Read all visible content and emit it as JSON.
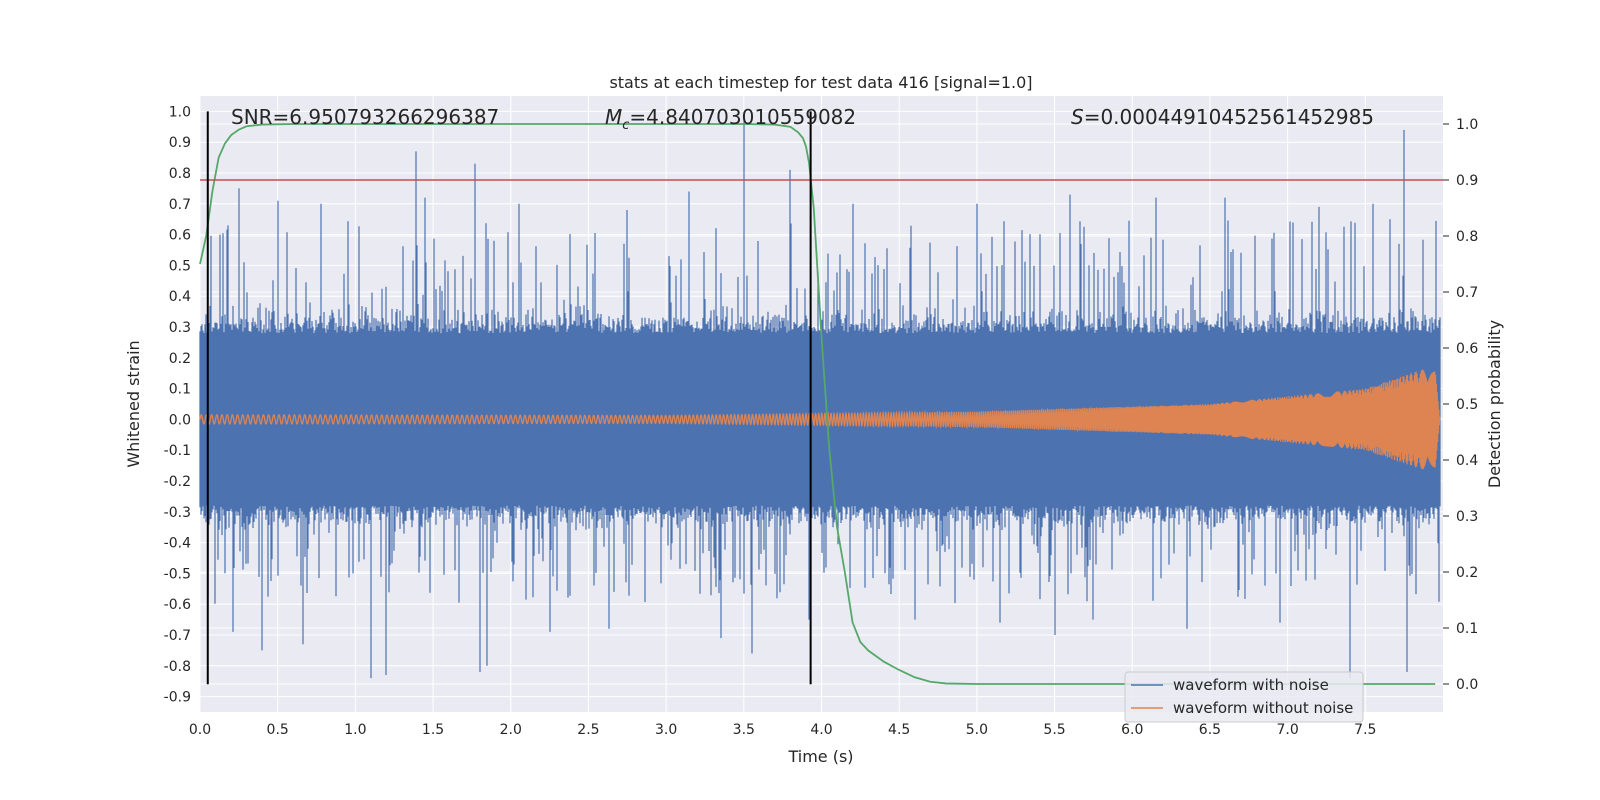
{
  "chart_data": {
    "type": "line",
    "title": "stats at each timestep for test data 416 [signal=1.0]",
    "xlabel": "Time (s)",
    "ylabel": "Whitened strain",
    "ylabel_right": "Detection probability",
    "xlim": [
      0.0,
      8.0
    ],
    "ylim": [
      -0.95,
      1.05
    ],
    "ylim_right": [
      -0.05,
      1.05
    ],
    "xticks": [
      "0.0",
      "0.5",
      "1.0",
      "1.5",
      "2.0",
      "2.5",
      "3.0",
      "3.5",
      "4.0",
      "4.5",
      "5.0",
      "5.5",
      "6.0",
      "6.5",
      "7.0",
      "7.5"
    ],
    "yticks": [
      "1.0",
      "0.9",
      "0.8",
      "0.7",
      "0.6",
      "0.5",
      "0.4",
      "0.3",
      "0.2",
      "0.1",
      "0.0",
      "-0.1",
      "-0.2",
      "-0.3",
      "-0.4",
      "-0.5",
      "-0.6",
      "-0.7",
      "-0.8",
      "-0.9"
    ],
    "yticks_right": [
      "1.0",
      "0.9",
      "0.8",
      "0.7",
      "0.6",
      "0.5",
      "0.4",
      "0.3",
      "0.2",
      "0.1",
      "0.0"
    ],
    "grid": true,
    "legend_position": "bottom-right",
    "annotations": {
      "snr": "SNR=6.950793266296387",
      "mc": "=4.840703010559082",
      "s": "=0.00044910452561452985"
    },
    "annotation_symbols": {
      "mc": "M",
      "mc_sub": "c",
      "s": "S"
    },
    "series": [
      {
        "name": "waveform with noise",
        "color": "#4c72b0",
        "noise_typical_amplitude": 0.28,
        "spikes": [
          [
            0.05,
            -0.57
          ],
          [
            0.13,
            0.6
          ],
          [
            0.18,
            0.63
          ],
          [
            0.21,
            -0.69
          ],
          [
            0.25,
            0.75
          ],
          [
            0.4,
            -0.75
          ],
          [
            0.5,
            0.71
          ],
          [
            0.66,
            -0.73
          ],
          [
            0.78,
            0.7
          ],
          [
            1.1,
            -0.84
          ],
          [
            1.2,
            -0.83
          ],
          [
            1.39,
            0.87
          ],
          [
            1.45,
            0.72
          ],
          [
            1.77,
            0.83
          ],
          [
            1.8,
            -0.82
          ],
          [
            1.85,
            -0.8
          ],
          [
            2.05,
            0.7
          ],
          [
            2.25,
            -0.69
          ],
          [
            2.63,
            -0.68
          ],
          [
            2.75,
            0.68
          ],
          [
            3.15,
            0.74
          ],
          [
            3.35,
            -0.71
          ],
          [
            3.5,
            0.98
          ],
          [
            3.55,
            -0.76
          ],
          [
            3.8,
            0.81
          ],
          [
            3.92,
            -0.65
          ],
          [
            4.2,
            0.7
          ],
          [
            4.6,
            -0.65
          ],
          [
            5.0,
            0.7
          ],
          [
            5.15,
            -0.66
          ],
          [
            5.5,
            -0.7
          ],
          [
            5.6,
            0.73
          ],
          [
            5.75,
            -0.65
          ],
          [
            6.15,
            0.72
          ],
          [
            6.35,
            -0.68
          ],
          [
            6.6,
            0.72
          ],
          [
            6.95,
            -0.66
          ],
          [
            7.2,
            0.69
          ],
          [
            7.4,
            -0.84
          ],
          [
            7.55,
            0.7
          ],
          [
            7.66,
            0.65
          ],
          [
            7.75,
            0.94
          ],
          [
            7.77,
            -0.82
          ]
        ]
      },
      {
        "name": "waveform without noise",
        "color": "#dd8452",
        "envelope": [
          [
            0.0,
            0.015
          ],
          [
            3.0,
            0.013
          ],
          [
            5.0,
            0.025
          ],
          [
            6.5,
            0.05
          ],
          [
            7.5,
            0.1
          ],
          [
            7.85,
            0.16
          ],
          [
            7.95,
            0.17
          ],
          [
            7.98,
            0.0
          ]
        ]
      },
      {
        "name": "detection probability",
        "color": "#55a868",
        "axis": "right",
        "x": [
          0.0,
          0.04,
          0.08,
          0.12,
          0.16,
          0.2,
          0.25,
          0.3,
          0.4,
          0.6,
          1.0,
          2.0,
          3.0,
          3.5,
          3.7,
          3.8,
          3.85,
          3.88,
          3.9,
          3.92,
          3.95,
          4.0,
          4.05,
          4.1,
          4.15,
          4.2,
          4.25,
          4.3,
          4.4,
          4.5,
          4.6,
          4.7,
          4.8,
          5.0,
          6.0,
          7.0,
          7.95
        ],
        "values": [
          0.75,
          0.8,
          0.88,
          0.94,
          0.965,
          0.98,
          0.99,
          0.996,
          0.999,
          1.0,
          1.0,
          1.0,
          1.0,
          1.0,
          0.999,
          0.995,
          0.985,
          0.975,
          0.96,
          0.93,
          0.85,
          0.62,
          0.42,
          0.28,
          0.2,
          0.11,
          0.075,
          0.06,
          0.04,
          0.025,
          0.012,
          0.004,
          0.001,
          0.0,
          0.0,
          0.0,
          0.0
        ]
      }
    ],
    "threshold": {
      "value": 0.9,
      "axis": "right",
      "color": "#c44e52"
    },
    "vlines": [
      {
        "x": 0.05
      },
      {
        "x": 3.93
      }
    ],
    "vline_range": [
      -0.86,
      1.0
    ],
    "legend": [
      "waveform with noise",
      "waveform without noise"
    ]
  }
}
